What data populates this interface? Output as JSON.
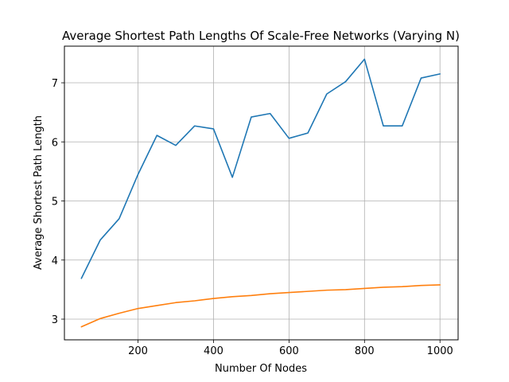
{
  "chart_data": {
    "type": "line",
    "title": "Average Shortest Path Lengths Of Scale-Free Networks (Varying N)",
    "xlabel": "Number Of Nodes",
    "ylabel": "Average Shortest Path Length",
    "xlim": [
      5,
      1048
    ],
    "ylim": [
      2.65,
      7.62
    ],
    "xticks": [
      200,
      400,
      600,
      800,
      1000
    ],
    "yticks": [
      3,
      4,
      5,
      6,
      7
    ],
    "grid": true,
    "legend": "none",
    "x": [
      50,
      100,
      150,
      200,
      250,
      300,
      350,
      400,
      450,
      500,
      550,
      600,
      650,
      700,
      750,
      800,
      850,
      900,
      950,
      1000
    ],
    "series": [
      {
        "color": "#1f77b4",
        "values": [
          3.69,
          4.34,
          4.7,
          5.45,
          6.11,
          5.94,
          6.27,
          6.22,
          5.4,
          6.42,
          6.48,
          6.06,
          6.15,
          6.81,
          7.02,
          7.4,
          6.27,
          6.27,
          7.08,
          7.15
        ]
      },
      {
        "color": "#ff7f0e",
        "values": [
          2.87,
          3.01,
          3.1,
          3.18,
          3.23,
          3.28,
          3.31,
          3.35,
          3.38,
          3.4,
          3.43,
          3.45,
          3.47,
          3.49,
          3.5,
          3.52,
          3.54,
          3.55,
          3.57,
          3.58
        ]
      }
    ]
  }
}
